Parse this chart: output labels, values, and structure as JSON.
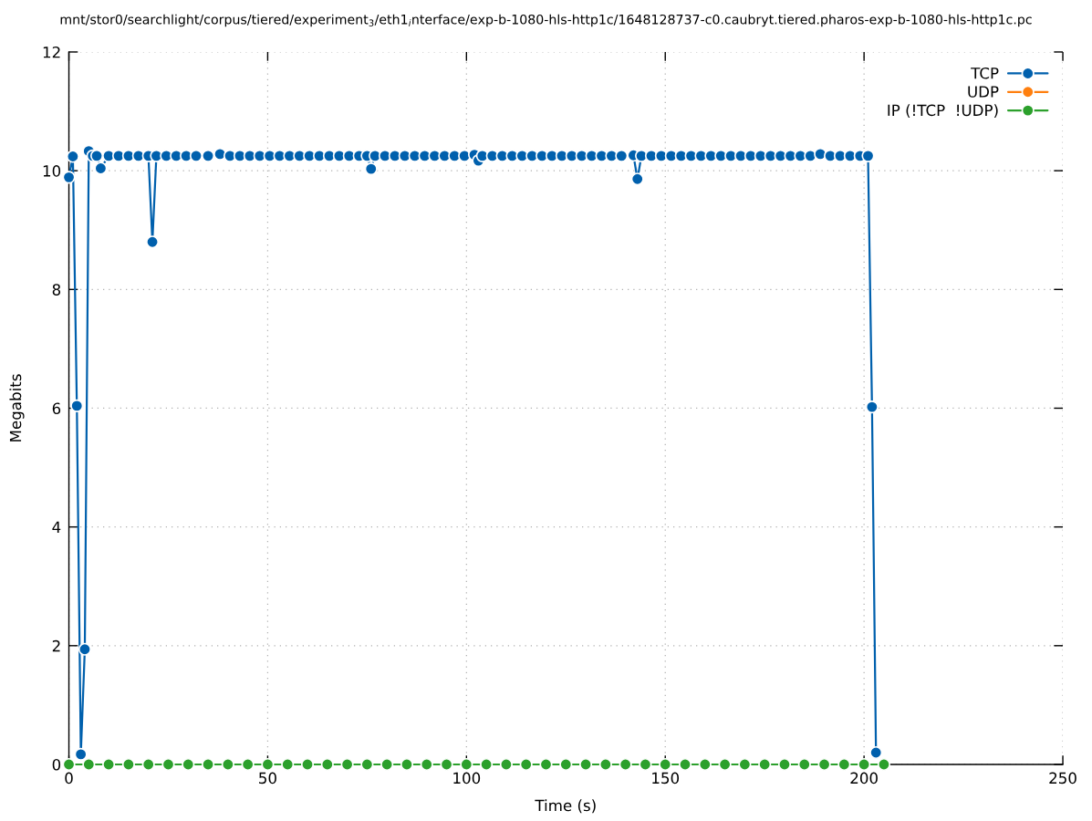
{
  "chart_data": {
    "type": "line",
    "title": "mnt/stor0/searchlight/corpus/tiered/experiment$_{3}$/eth1$_{i}$nterface/exp-b-1080-hls-http1c/1648128737-c0.caubryt.tiered.pharos-exp-b-1080-hls-http1c.pc",
    "xlabel": "Time (s)",
    "ylabel": "Megabits",
    "xlim": [
      0,
      250
    ],
    "xticks": [
      0,
      50,
      100,
      150,
      200,
      250
    ],
    "ylim": [
      0,
      12
    ],
    "yticks": [
      0,
      2,
      4,
      6,
      8,
      10,
      12
    ],
    "grid": true,
    "legend": "top right",
    "marker": "circle",
    "line_style": "solid",
    "series": [
      {
        "name": "TCP",
        "color": "#0060ad",
        "x": [
          0,
          1,
          2,
          3,
          4,
          5,
          6,
          7,
          8,
          10,
          12.5,
          15,
          17.5,
          20,
          21,
          22,
          24.5,
          27,
          29.5,
          32,
          35,
          38,
          40.5,
          43,
          45.5,
          48,
          50.5,
          53,
          55.5,
          58,
          60.5,
          63,
          65.5,
          68,
          70.5,
          73,
          75,
          76,
          77,
          79.5,
          82,
          84.5,
          87,
          89.5,
          92,
          94.5,
          97,
          99.5,
          102,
          103,
          104,
          106.5,
          109,
          111.5,
          114,
          116.5,
          119,
          121.5,
          124,
          126.5,
          129,
          131.5,
          134,
          136.5,
          139,
          142,
          143,
          144,
          146.5,
          149,
          151.5,
          154,
          156.5,
          159,
          161.5,
          164,
          166.5,
          169,
          171.5,
          174,
          176.5,
          179,
          181.5,
          184,
          186.5,
          189,
          191.5,
          194,
          196.5,
          199,
          201,
          202,
          203
        ],
        "values": [
          9.89,
          10.24,
          6.04,
          0.17,
          1.94,
          10.33,
          10.25,
          10.25,
          10.04,
          10.25,
          10.25,
          10.25,
          10.25,
          10.25,
          8.8,
          10.25,
          10.25,
          10.25,
          10.25,
          10.25,
          10.25,
          10.28,
          10.25,
          10.25,
          10.25,
          10.25,
          10.25,
          10.25,
          10.25,
          10.25,
          10.25,
          10.25,
          10.25,
          10.25,
          10.25,
          10.25,
          10.25,
          10.03,
          10.25,
          10.25,
          10.25,
          10.25,
          10.25,
          10.25,
          10.25,
          10.25,
          10.25,
          10.25,
          10.27,
          10.17,
          10.25,
          10.25,
          10.25,
          10.25,
          10.25,
          10.25,
          10.25,
          10.25,
          10.25,
          10.25,
          10.25,
          10.25,
          10.25,
          10.25,
          10.25,
          10.26,
          9.86,
          10.25,
          10.25,
          10.25,
          10.25,
          10.25,
          10.25,
          10.25,
          10.25,
          10.25,
          10.25,
          10.25,
          10.25,
          10.25,
          10.25,
          10.25,
          10.25,
          10.25,
          10.25,
          10.28,
          10.25,
          10.25,
          10.25,
          10.25,
          10.25,
          6.02,
          0.2
        ]
      },
      {
        "name": "UDP",
        "color": "#ff7f0e"
      },
      {
        "name": "IP (!TCP  !UDP)",
        "color": "#2ca02c",
        "x": [
          0,
          5,
          10,
          15,
          20,
          25,
          30,
          35,
          40,
          45,
          50,
          55,
          60,
          65,
          70,
          75,
          80,
          85,
          90,
          95,
          100,
          105,
          110,
          115,
          120,
          125,
          130,
          135,
          140,
          145,
          150,
          155,
          160,
          165,
          170,
          175,
          180,
          185,
          190,
          195,
          200,
          205
        ],
        "values": [
          0,
          0,
          0,
          0,
          0,
          0,
          0,
          0,
          0,
          0,
          0,
          0,
          0,
          0,
          0,
          0,
          0,
          0,
          0,
          0,
          0,
          0,
          0,
          0,
          0,
          0,
          0,
          0,
          0,
          0,
          0,
          0,
          0,
          0,
          0,
          0,
          0,
          0,
          0,
          0,
          0,
          0
        ]
      }
    ]
  }
}
